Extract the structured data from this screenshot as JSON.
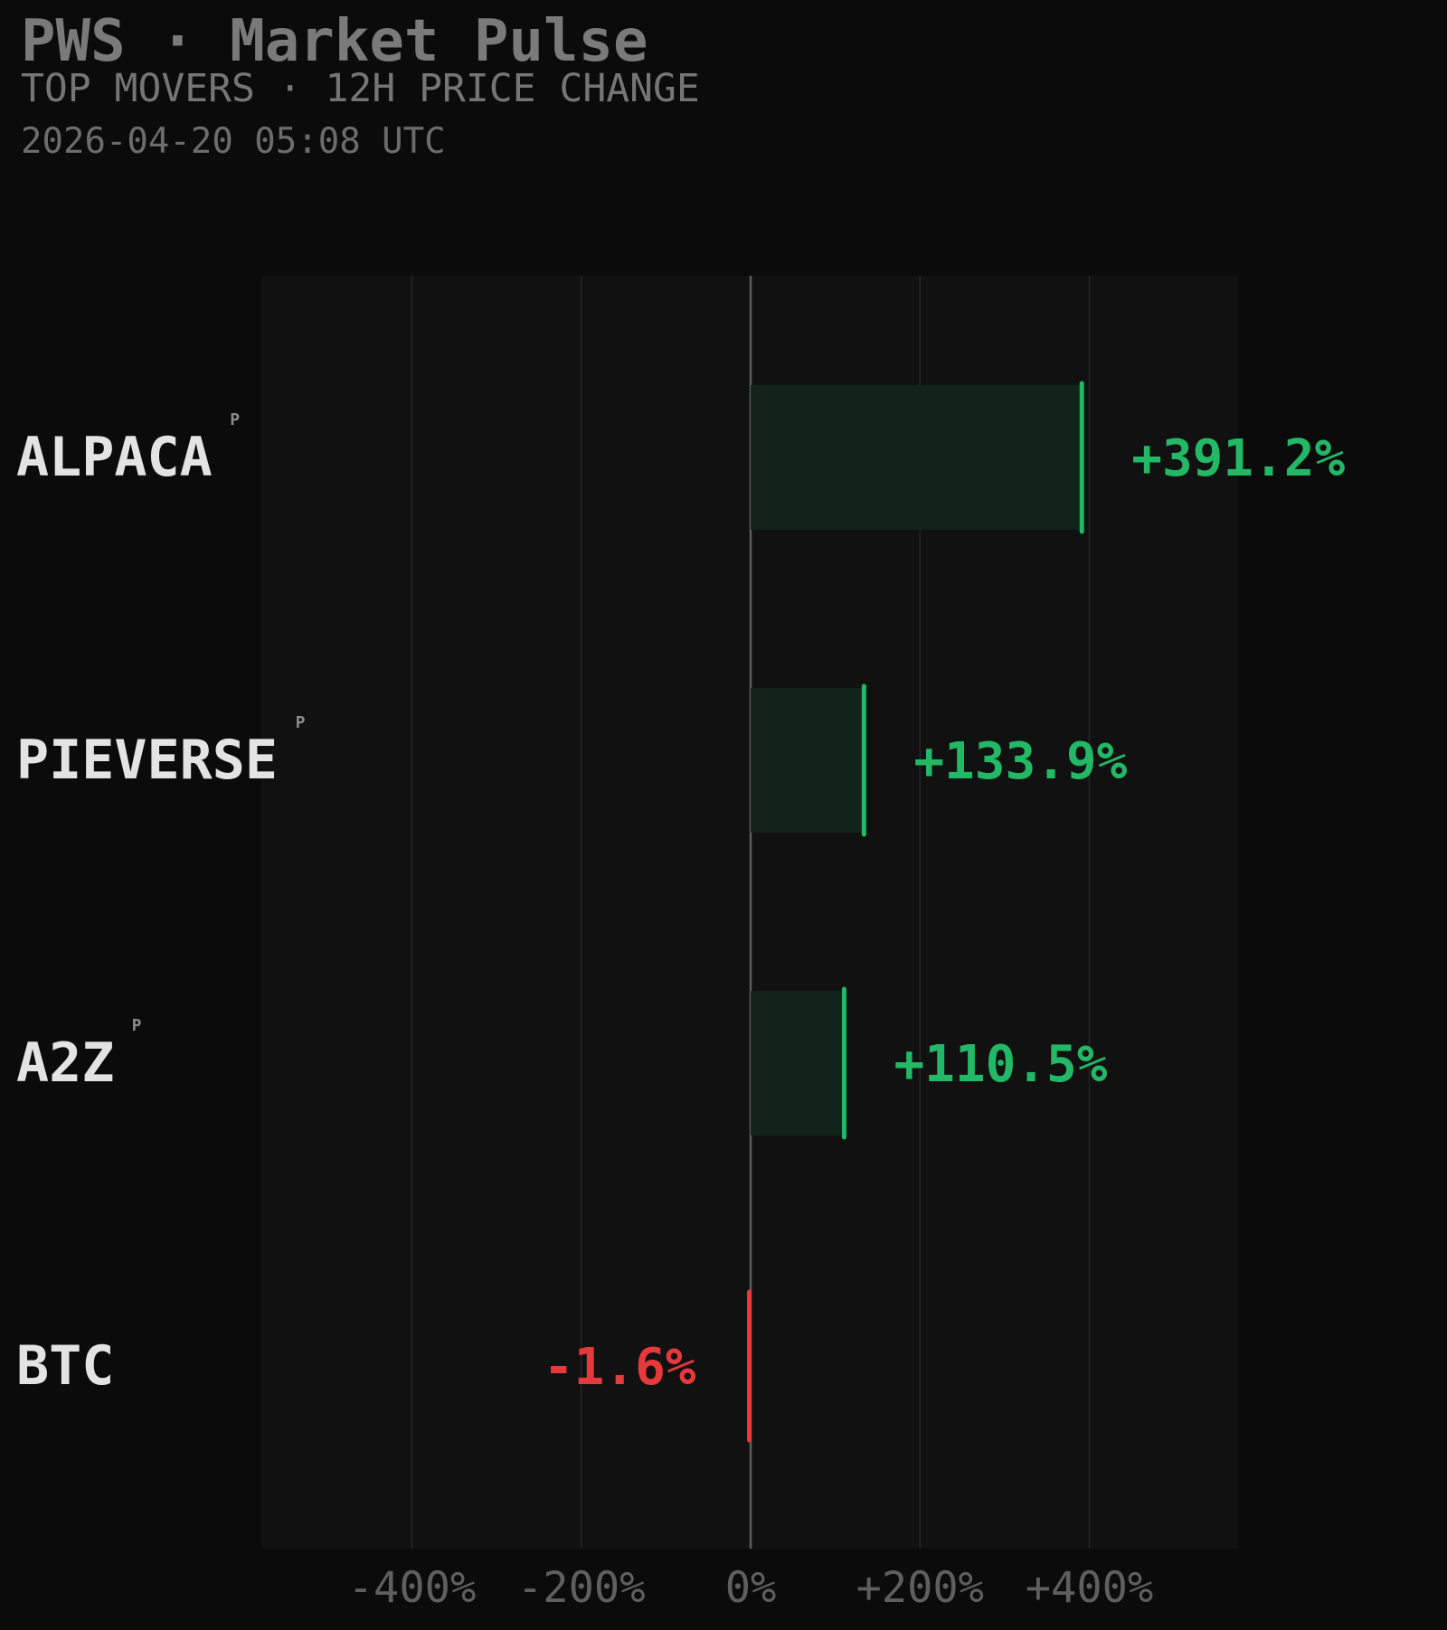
{
  "header": {
    "title": "PWS · Market Pulse",
    "subtitle": "TOP MOVERS · 12H PRICE CHANGE",
    "timestamp": "2026-04-20 05:08 UTC"
  },
  "colors": {
    "background": "#0b0b0b",
    "plot_background": "#111111",
    "positive": "#22b866",
    "positive_fill": "#12241a",
    "negative": "#e5393b",
    "label": "#e3e3e3",
    "badge": "#8a8a8a",
    "grid": "#262626",
    "zero_line": "#5e5e5e",
    "tick": "#5f5f5f"
  },
  "chart_data": {
    "type": "bar",
    "orientation": "horizontal",
    "categories": [
      "ALPACA",
      "PIEVERSE",
      "A2Z",
      "BTC"
    ],
    "values": [
      391.2,
      133.9,
      110.5,
      -1.6
    ],
    "value_labels": [
      "+391.2%",
      "+133.9%",
      "+110.5%",
      "-1.6%"
    ],
    "badges": [
      "P",
      "P",
      "P",
      ""
    ],
    "xlim": [
      -460,
      460
    ],
    "xticks": [
      -400,
      -200,
      0,
      200,
      400
    ],
    "xtick_labels": [
      "-400%",
      "-200%",
      "0%",
      "+200%",
      "+400%"
    ],
    "grid": true
  }
}
